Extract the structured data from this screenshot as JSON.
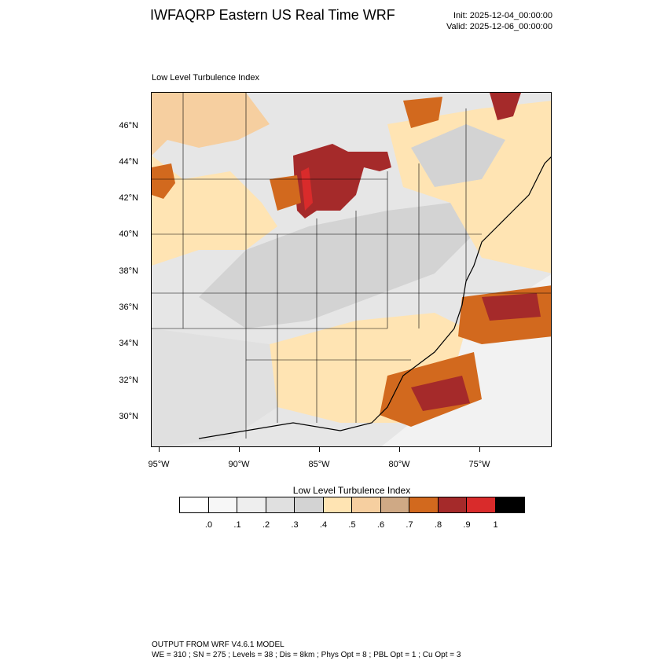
{
  "header": {
    "title": "IWFAQRP Eastern US Real Time WRF",
    "init": "Init: 2025-12-04_00:00:00",
    "valid": "Valid: 2025-12-06_00:00:00"
  },
  "map": {
    "subtitle": "Low Level Turbulence Index",
    "lat_labels": [
      "46°N",
      "44°N",
      "42°N",
      "40°N",
      "38°N",
      "36°N",
      "34°N",
      "32°N",
      "30°N"
    ],
    "lon_labels": [
      "95°W",
      "90°W",
      "85°W",
      "80°W",
      "75°W"
    ],
    "land_color": "#f2f2f2",
    "boundary_color": "#000000"
  },
  "colorbar": {
    "title": "Low Level Turbulence Index",
    "colors": [
      "#ffffff",
      "#f7f7f7",
      "#eeeeee",
      "#e0e0e0",
      "#d3d3d3",
      "#ffe4b3",
      "#f6cfa0",
      "#cfa985",
      "#d2691e",
      "#a52a2a",
      "#d92b2b",
      "#000000"
    ],
    "labels": [
      ".0",
      ".1",
      ".2",
      ".3",
      ".4",
      ".5",
      ".6",
      ".7",
      ".8",
      ".9",
      "1"
    ]
  },
  "footer": {
    "line1": "OUTPUT FROM WRF V4.6.1 MODEL",
    "line2": "WE = 310 ; SN = 275 ; Levels = 38 ; Dis = 8km ; Phys Opt = 8 ; PBL Opt = 1 ; Cu Opt = 3"
  }
}
